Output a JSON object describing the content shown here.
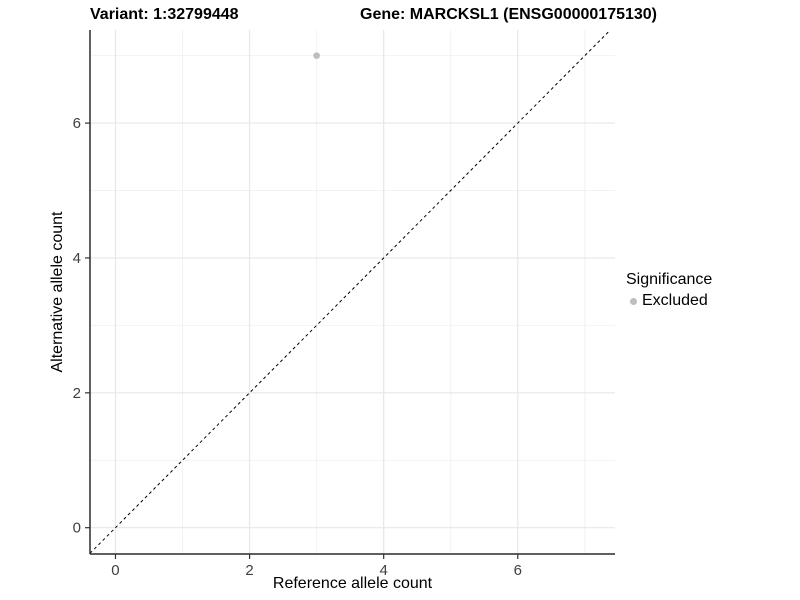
{
  "titles": {
    "variant": "Variant: 1:32799448",
    "gene": "Gene: MARCKSL1 (ENSG00000175130)"
  },
  "chart_data": {
    "type": "scatter",
    "title_left": "Variant: 1:32799448",
    "title_right": "Gene: MARCKSL1 (ENSG00000175130)",
    "xlabel": "Reference allele count",
    "ylabel": "Alternative allele count",
    "xlim": [
      -0.38,
      7.45
    ],
    "ylim": [
      -0.39,
      7.38
    ],
    "x_ticks": [
      0,
      2,
      4,
      6
    ],
    "y_ticks": [
      0,
      2,
      4,
      6
    ],
    "x_minor": [
      1,
      3,
      5,
      7
    ],
    "y_minor": [
      1,
      3,
      5,
      7
    ],
    "grid": "major+minor",
    "abline": {
      "slope": 1,
      "intercept": 0,
      "linetype": "dashed"
    },
    "series": [
      {
        "name": "Excluded",
        "color": "#bebebe",
        "points": [
          {
            "x": 3,
            "y": 7
          }
        ]
      }
    ],
    "legend": {
      "title": "Significance",
      "position": "right"
    }
  },
  "legend": {
    "title": "Significance",
    "items": [
      {
        "label": "Excluded",
        "color": "#bebebe"
      }
    ]
  },
  "colors": {
    "background": "#ffffff",
    "grid_major": "#e7e7e7",
    "grid_minor": "#f2f2f2",
    "axis_line": "#2b2b2b",
    "tick_mark": "#333333",
    "tick_label": "#404040",
    "abline": "#000000"
  }
}
